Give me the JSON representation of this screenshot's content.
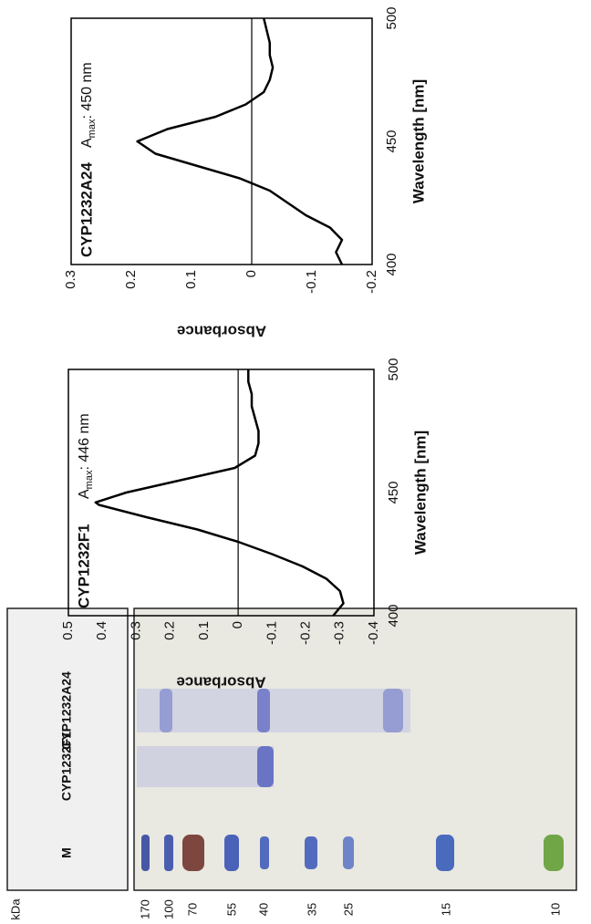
{
  "chart_data": [
    {
      "type": "line",
      "label": "CYP1232F1",
      "annotation": {
        "symbol": "A",
        "subscript": "max",
        "text": ": 446 nm"
      },
      "x_label": "Wavelength [nm]",
      "y_label": "Absorbance",
      "x": [
        400,
        405,
        410,
        415,
        420,
        425,
        430,
        435,
        440,
        445,
        446,
        450,
        455,
        460,
        465,
        470,
        475,
        480,
        485,
        490,
        495,
        500
      ],
      "series": [
        {
          "color": "#000000",
          "values": [
            -0.28,
            -0.31,
            -0.3,
            -0.26,
            -0.19,
            -0.1,
            0.0,
            0.12,
            0.27,
            0.41,
            0.42,
            0.33,
            0.17,
            0.01,
            -0.05,
            -0.06,
            -0.06,
            -0.05,
            -0.04,
            -0.04,
            -0.03,
            -0.03
          ]
        }
      ],
      "xlim": [
        400,
        500
      ],
      "xticks": [
        400,
        450,
        500
      ],
      "ylim": [
        -0.4,
        0.5
      ],
      "yticks": [
        -0.4,
        -0.3,
        -0.2,
        -0.1,
        0,
        0.1,
        0.2,
        0.3,
        0.4,
        0.5
      ],
      "zero_line": true
    },
    {
      "type": "line",
      "label": "CYP1232A24",
      "annotation": {
        "symbol": "A",
        "subscript": "max",
        "text": ": 450 nm"
      },
      "x_label": "Wavelength [nm]",
      "y_label": "Absorbance",
      "x": [
        400,
        405,
        410,
        415,
        420,
        425,
        430,
        435,
        440,
        445,
        450,
        455,
        460,
        465,
        470,
        475,
        480,
        485,
        490,
        495,
        500
      ],
      "series": [
        {
          "color": "#000000",
          "values": [
            -0.15,
            -0.14,
            -0.15,
            -0.13,
            -0.09,
            -0.06,
            -0.03,
            0.02,
            0.09,
            0.16,
            0.19,
            0.14,
            0.06,
            0.01,
            -0.02,
            -0.03,
            -0.035,
            -0.03,
            -0.03,
            -0.025,
            -0.02
          ]
        }
      ],
      "xlim": [
        400,
        500
      ],
      "xticks": [
        400,
        450,
        500
      ],
      "ylim": [
        -0.2,
        0.3
      ],
      "yticks": [
        -0.2,
        -0.1,
        0,
        0.1,
        0.2,
        0.3
      ],
      "zero_line": true
    }
  ],
  "gel": {
    "unit": "kDa",
    "markers": [
      170,
      100,
      70,
      55,
      40,
      35,
      25,
      15,
      10
    ],
    "lanes": [
      "M",
      "CYP1232F1",
      "CYP1232A24"
    ]
  }
}
